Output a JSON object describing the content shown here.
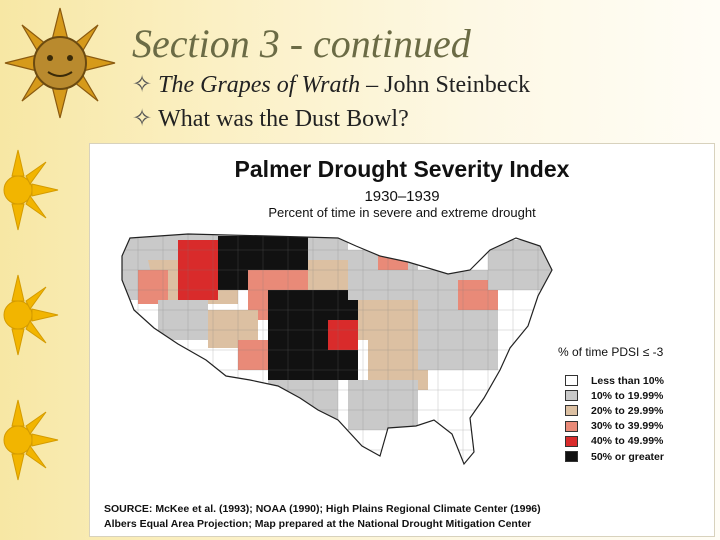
{
  "slide": {
    "title": "Section 3 - continued",
    "bullets": [
      {
        "italic_part": "The Grapes of Wrath",
        "rest": " – John Steinbeck"
      },
      {
        "italic_part": "",
        "rest": "What was the Dust Bowl?"
      }
    ],
    "bullet_glyph": "✧"
  },
  "map_figure": {
    "title": "Palmer Drought Severity Index",
    "years": "1930–1939",
    "subtitle": "Percent of time in severe and extreme drought",
    "legend_title": "% of time PDSI ≤ -3",
    "legend": [
      {
        "label": "Less than 10%",
        "color": "#ffffff"
      },
      {
        "label": "10% to 19.99%",
        "color": "#c9c9c9"
      },
      {
        "label": "20% to 29.99%",
        "color": "#dcc0a2"
      },
      {
        "label": "30% to 39.99%",
        "color": "#e98a78"
      },
      {
        "label": "40% to 49.99%",
        "color": "#d92b2b"
      },
      {
        "label": "50% or greater",
        "color": "#111111"
      }
    ],
    "source_line1": "SOURCE: McKee et al. (1993); NOAA (1990); High Plains Regional Climate Center (1996)",
    "source_line2": "Albers Equal Area Projection; Map prepared at the National Drought Mitigation Center"
  }
}
